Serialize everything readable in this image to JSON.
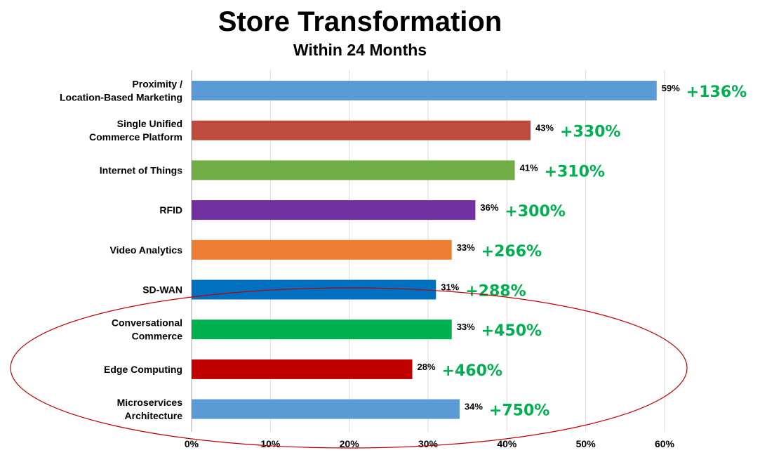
{
  "chart_data": {
    "type": "bar",
    "orientation": "horizontal",
    "title": "Store Transformation",
    "subtitle": "Within 24 Months",
    "xlim": [
      0,
      60
    ],
    "x_ticks": [
      0,
      10,
      20,
      30,
      40,
      50,
      60
    ],
    "x_tick_labels": [
      "0%",
      "10%",
      "20%",
      "30%",
      "40%",
      "50%",
      "60%"
    ],
    "grid": "vertical",
    "categories": [
      "Proximity / Location-Based Marketing",
      "Single Unified Commerce Platform",
      "Internet of Things",
      "RFID",
      "Video Analytics",
      "SD-WAN",
      "Conversational Commerce",
      "Edge Computing",
      "Microservices Architecture"
    ],
    "category_label_lines": [
      [
        "Proximity /",
        "Location-Based Marketing"
      ],
      [
        "Single Unified",
        "Commerce Platform"
      ],
      [
        "Internet of Things"
      ],
      [
        "RFID"
      ],
      [
        "Video Analytics"
      ],
      [
        "SD-WAN"
      ],
      [
        "Conversational",
        "Commerce"
      ],
      [
        "Edge Computing"
      ],
      [
        "Microservices",
        "Architecture"
      ]
    ],
    "values": [
      59,
      43,
      41,
      36,
      33,
      31,
      33,
      28,
      34
    ],
    "value_labels": [
      "59%",
      "43%",
      "41%",
      "36%",
      "33%",
      "31%",
      "33%",
      "28%",
      "34%"
    ],
    "annotations": [
      "+136%",
      "+330%",
      "+310%",
      "+300%",
      "+266%",
      "+288%",
      "+450%",
      "+460%",
      "+750%"
    ],
    "bar_colors": [
      "#5b9bd5",
      "#be4b3c",
      "#70ad47",
      "#7030a0",
      "#ed7d31",
      "#0070c0",
      "#00b050",
      "#c00000",
      "#5b9bd5"
    ],
    "annotation_color": "#00b050",
    "highlight_ellipse": {
      "color": "#c00000",
      "highlights": [
        "Conversational Commerce",
        "Edge Computing",
        "Microservices Architecture"
      ]
    }
  }
}
